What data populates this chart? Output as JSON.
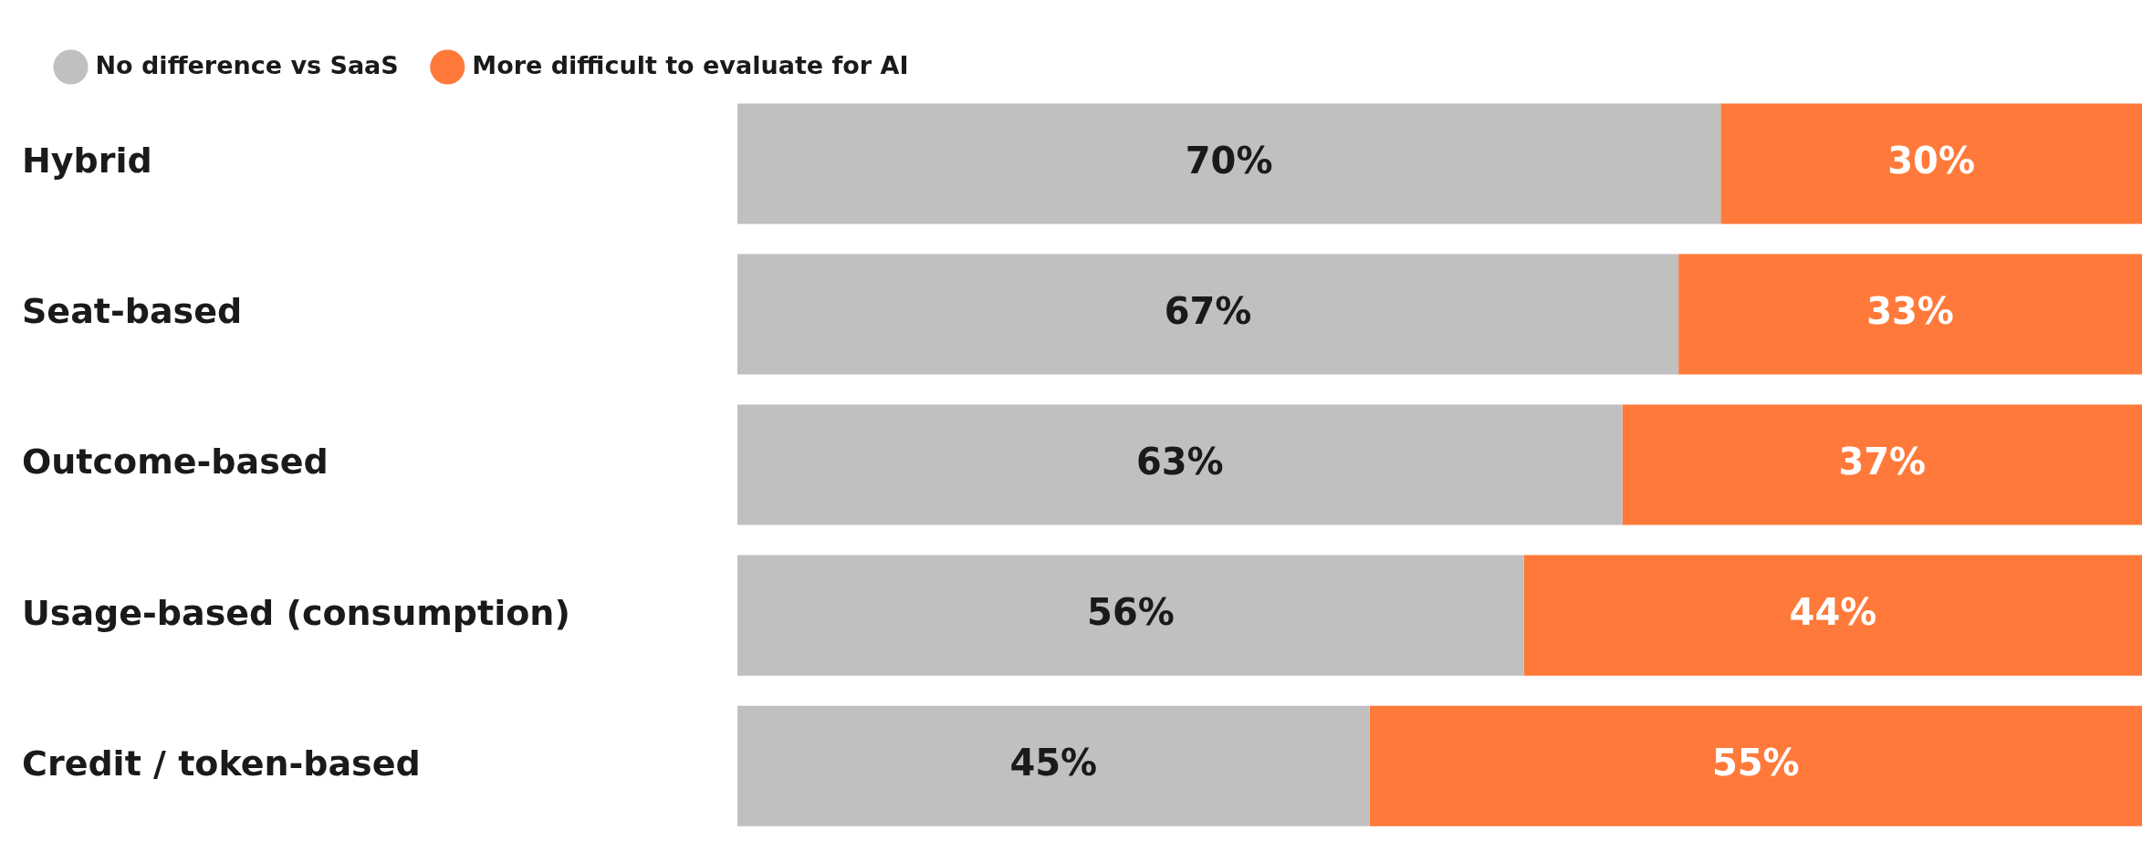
{
  "chart_data": {
    "type": "bar",
    "orientation": "horizontal",
    "stacked": true,
    "legend": "top left",
    "grid": false,
    "categories": [
      "Hybrid",
      "Seat-based",
      "Outcome-based",
      "Usage-based (consumption)",
      "Credit / token-based"
    ],
    "series": [
      {
        "name": "No difference vs SaaS",
        "color": "#c0c0c0",
        "values": [
          70,
          67,
          63,
          56,
          45
        ],
        "value_labels": [
          "70%",
          "67%",
          "63%",
          "56%",
          "45%"
        ]
      },
      {
        "name": "More difficult to evaluate for AI",
        "color": "#ff7a3a",
        "values": [
          30,
          33,
          37,
          44,
          55
        ],
        "value_labels": [
          "30%",
          "33%",
          "37%",
          "44%",
          "55%"
        ]
      }
    ]
  }
}
